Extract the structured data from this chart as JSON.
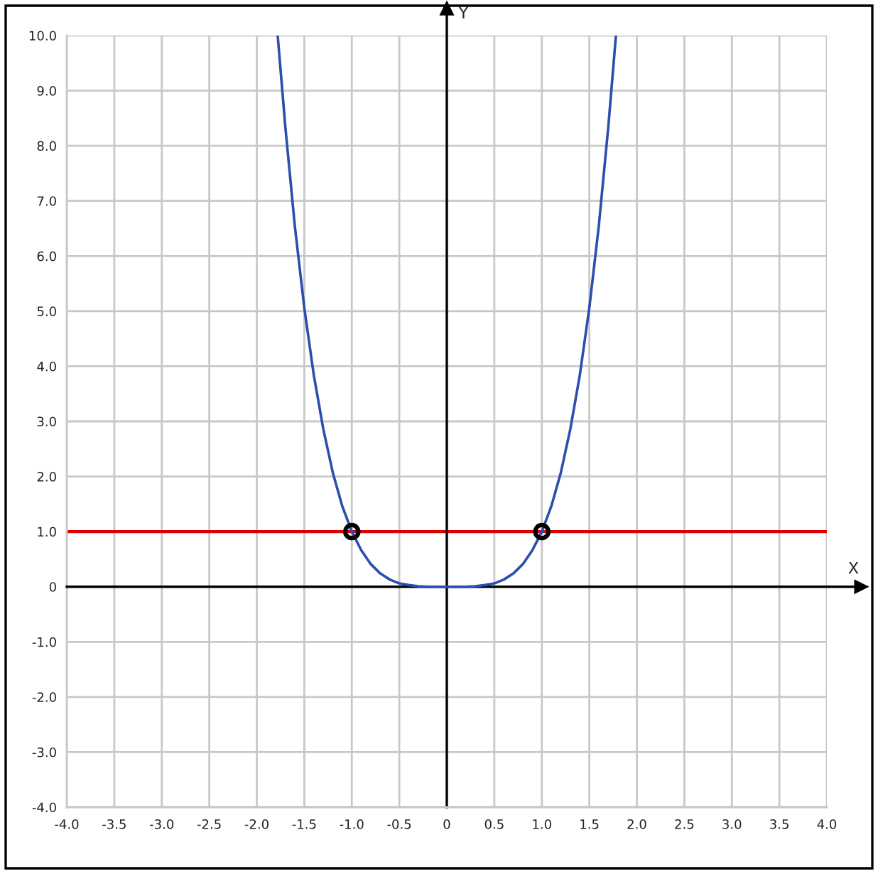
{
  "chart_data": {
    "type": "line",
    "xlabel": "X",
    "ylabel": "Y",
    "series": [
      {
        "color": "#2b4fae",
        "x": [
          -1.78,
          -1.7,
          -1.6,
          -1.5,
          -1.4,
          -1.3,
          -1.2,
          -1.1,
          -1.0,
          -0.9,
          -0.8,
          -0.7,
          -0.6,
          -0.5,
          -0.4,
          -0.3,
          -0.2,
          0,
          0.2,
          0.3,
          0.4,
          0.5,
          0.6,
          0.7,
          0.8,
          0.9,
          1.0,
          1.1,
          1.2,
          1.3,
          1.4,
          1.5,
          1.6,
          1.7,
          1.78
        ],
        "values": [
          10.0,
          8.35,
          6.55,
          5.06,
          3.84,
          2.86,
          2.07,
          1.46,
          1.0,
          0.66,
          0.41,
          0.24,
          0.13,
          0.06,
          0.03,
          0.01,
          0.0,
          0.0,
          0.0,
          0.01,
          0.03,
          0.06,
          0.13,
          0.24,
          0.41,
          0.66,
          1.0,
          1.46,
          2.07,
          2.86,
          3.84,
          5.06,
          6.55,
          8.35,
          10.0
        ]
      },
      {
        "type": "scatter",
        "color": "#000000",
        "marker": "circle",
        "x": [
          -1,
          1
        ],
        "values": [
          1,
          1
        ]
      }
    ],
    "ref_lines": [
      {
        "axis": "y",
        "value": 1,
        "color": "#dd0000",
        "line_style": "solid"
      }
    ],
    "xlim": [
      -4,
      4
    ],
    "ylim": [
      -4,
      10
    ],
    "xticks": [
      {
        "value": -4,
        "label": "-4.0"
      },
      {
        "value": -3.5,
        "label": "-3.5"
      },
      {
        "value": -3,
        "label": "-3.0"
      },
      {
        "value": -2.5,
        "label": "-2.5"
      },
      {
        "value": -2,
        "label": "-2.0"
      },
      {
        "value": -1.5,
        "label": "-1.5"
      },
      {
        "value": -1,
        "label": "-1.0"
      },
      {
        "value": -0.5,
        "label": "-0.5"
      },
      0,
      0.5,
      {
        "value": 1,
        "label": "1.0"
      },
      1.5,
      {
        "value": 2,
        "label": "2.0"
      },
      2.5,
      {
        "value": 3,
        "label": "3.0"
      },
      3.5,
      {
        "value": 4,
        "label": "4.0"
      }
    ],
    "yticks": [
      {
        "value": -4,
        "label": "-4.0"
      },
      {
        "value": -3,
        "label": "-3.0"
      },
      {
        "value": -2,
        "label": "-2.0"
      },
      {
        "value": -1,
        "label": "-1.0"
      },
      0,
      {
        "value": 1,
        "label": "1.0"
      },
      {
        "value": 2,
        "label": "2.0"
      },
      {
        "value": 3,
        "label": "3.0"
      },
      {
        "value": 4,
        "label": "4.0"
      },
      {
        "value": 5,
        "label": "5.0"
      },
      {
        "value": 6,
        "label": "6.0"
      },
      {
        "value": 7,
        "label": "7.0"
      },
      {
        "value": 8,
        "label": "8.0"
      },
      {
        "value": 9,
        "label": "9.0"
      },
      {
        "value": 10,
        "label": "10.0"
      }
    ],
    "grid": true
  }
}
